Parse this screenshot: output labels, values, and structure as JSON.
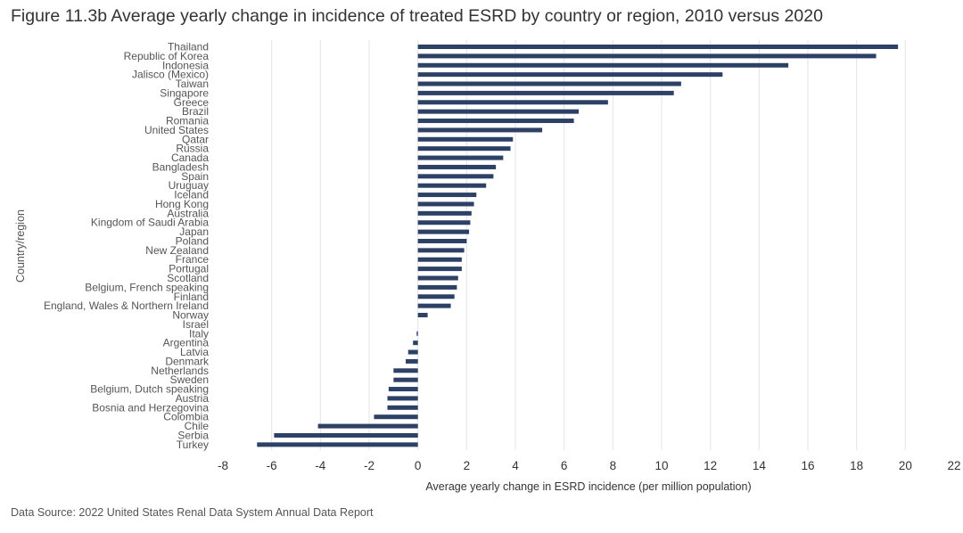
{
  "title": "Figure 11.3b Average yearly change in incidence of treated ESRD by country or region, 2010 versus 2020",
  "source": "Data Source: 2022 United States Renal Data System Annual Data Report",
  "chart_data": {
    "type": "bar",
    "orientation": "horizontal",
    "xlabel": "Average yearly change in ESRD incidence (per million population)",
    "ylabel": "Country/region",
    "xlim": [
      -8,
      22
    ],
    "xticks": [
      -8,
      -6,
      -4,
      -2,
      0,
      2,
      4,
      6,
      8,
      10,
      12,
      14,
      16,
      18,
      20,
      22
    ],
    "grid": "vertical",
    "bar_color": "#2d4066",
    "categories": [
      "Thailand",
      "Republic of Korea",
      "Indonesia",
      "Jalisco (Mexico)",
      "Taiwan",
      "Singapore",
      "Greece",
      "Brazil",
      "Romania",
      "United States",
      "Qatar",
      "Russia",
      "Canada",
      "Bangladesh",
      "Spain",
      "Uruguay",
      "Iceland",
      "Hong Kong",
      "Australia",
      "Kingdom of Saudi Arabia",
      "Japan",
      "Poland",
      "New Zealand",
      "France",
      "Portugal",
      "Scotland",
      "Belgium, French speaking",
      "Finland",
      "England, Wales & Northern Ireland",
      "Norway",
      "Israel",
      "Italy",
      "Argentina",
      "Latvia",
      "Denmark",
      "Netherlands",
      "Sweden",
      "Belgium, Dutch speaking",
      "Austria",
      "Bosnia and Herzegovina",
      "Colombia",
      "Chile",
      "Serbia",
      "Turkey"
    ],
    "values": [
      19.7,
      18.8,
      15.2,
      12.5,
      10.8,
      10.5,
      7.8,
      6.6,
      6.4,
      5.1,
      3.9,
      3.8,
      3.5,
      3.2,
      3.1,
      2.8,
      2.4,
      2.3,
      2.2,
      2.15,
      2.1,
      2.0,
      1.9,
      1.8,
      1.8,
      1.65,
      1.6,
      1.5,
      1.35,
      0.4,
      0.0,
      -0.05,
      -0.2,
      -0.4,
      -0.5,
      -1.0,
      -1.0,
      -1.2,
      -1.25,
      -1.25,
      -1.8,
      -4.1,
      -5.9,
      -6.6
    ]
  }
}
